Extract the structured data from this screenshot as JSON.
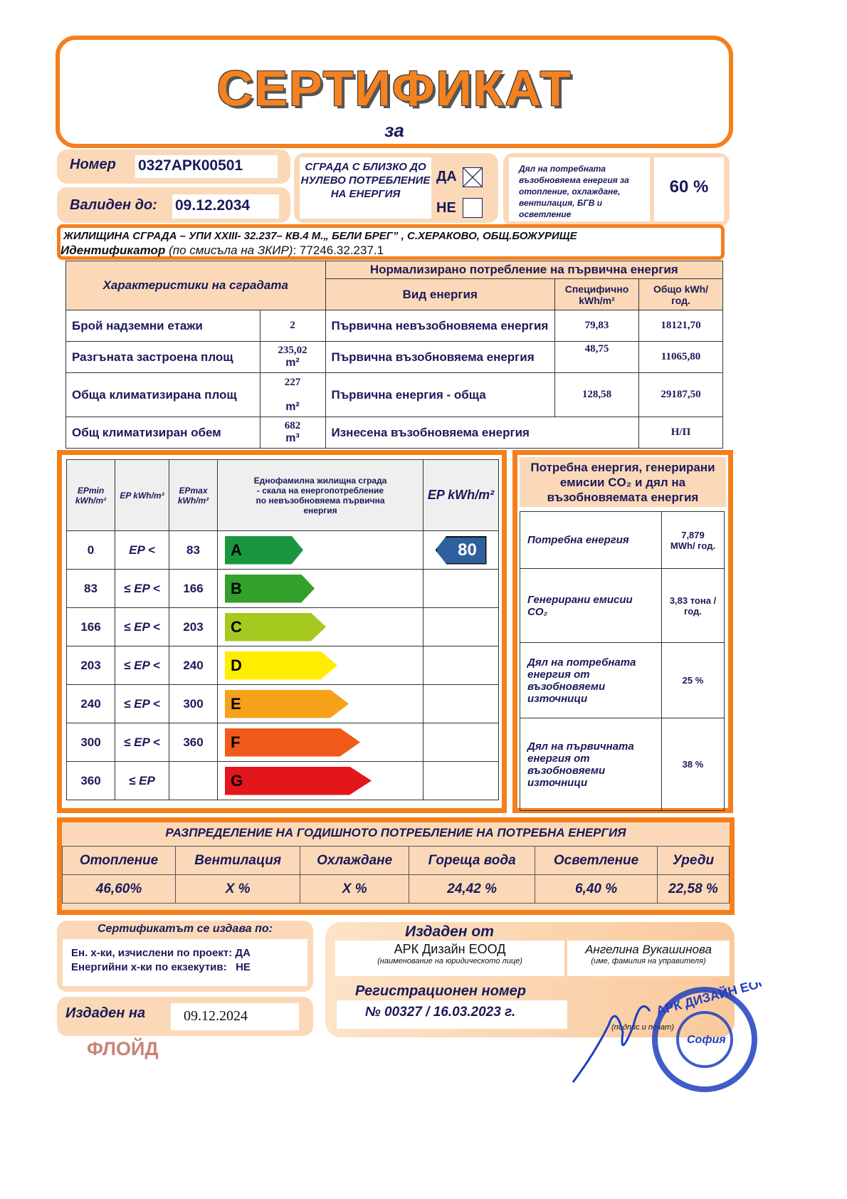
{
  "header": {
    "title": "СЕРТИФИКАТ",
    "subtitle": "за"
  },
  "number": {
    "label": "Номер",
    "value": "0327АРК00501"
  },
  "valid": {
    "label": "Валиден до:",
    "value": "09.12.2034"
  },
  "nzeb": {
    "text": "СГРАДА С БЛИЗКО ДО НУЛЕВО ПОТРЕБЛЕНИЕ НА ЕНЕРГИЯ",
    "yes": "ДА",
    "no": "НЕ",
    "yes_checked": true,
    "no_checked": false
  },
  "renewable_share": {
    "label": "Дял на потребната възобновяема енергия за отопление, охлаждане, вентилация, БГВ и осветление",
    "value": "60 %"
  },
  "address": {
    "line": "ЖИЛИЩИНА СГРАДА – УПИ XXIII- 32.237– КВ.4 М.„ БЕЛИ БРЕГ” , С.ХЕРАКОВО,  ОБЩ.БОЖУРИЩЕ",
    "id_label": "Идентификатор",
    "id_note": "(по смисъла на ЗКИР)",
    "id_value": ": 77246.32.237.1"
  },
  "characteristics": {
    "header": "Характеристики на сградата",
    "norm_header": "Нормализирано потребление на първична енергия",
    "col_type": "Вид енергия",
    "col_spec": "Специфично kWh/m²",
    "col_total": "Общо kWh/год.",
    "rows": [
      {
        "name": "Брой надземни етажи",
        "value": "2",
        "unit": "",
        "energy": "Първична невъзобновяема енергия",
        "spec": "79,83",
        "total": "18121,70"
      },
      {
        "name": "Разгъната застроена площ",
        "value": "235,02",
        "unit": "m²",
        "energy": "Първична възобновяема енергия",
        "spec": "48,75",
        "total": "11065,80"
      },
      {
        "name": "Обща климатизирана площ",
        "value": "227",
        "unit": "m²",
        "energy": "Първична енергия - обща",
        "spec": "128,58",
        "total": "29187,50"
      },
      {
        "name": "Общ климатизиран обем",
        "value": "682",
        "unit": "m³",
        "energy": "Изнесена възобновяема енергия",
        "spec": "",
        "total": "Н/П"
      }
    ]
  },
  "scale": {
    "headers": {
      "epmin": "EPmin kWh/m²",
      "ep": "EP kWh/m²",
      "epmax": "EPmax kWh/m²",
      "desc": "Еднофамилна жилищна сграда - скала на енергопотребление по невъзобновяема първична енергия",
      "current": "EP kWh/m²"
    },
    "classes": [
      {
        "min": "0",
        "op": "EP <",
        "max": "83",
        "letter": "A",
        "color": "#1a9641"
      },
      {
        "min": "83",
        "op": "≤ EP <",
        "max": "166",
        "letter": "B",
        "color": "#33a02c"
      },
      {
        "min": "166",
        "op": "≤ EP <",
        "max": "203",
        "letter": "C",
        "color": "#a6c91f"
      },
      {
        "min": "203",
        "op": "≤ EP <",
        "max": "240",
        "letter": "D",
        "color": "#ffee00"
      },
      {
        "min": "240",
        "op": "≤ EP <",
        "max": "300",
        "letter": "E",
        "color": "#f7a11a"
      },
      {
        "min": "300",
        "op": "≤ EP <",
        "max": "360",
        "letter": "F",
        "color": "#f05a1a"
      },
      {
        "min": "360",
        "op": "≤ EP",
        "max": "",
        "letter": "G",
        "color": "#e3161b"
      }
    ],
    "current_value": "80",
    "current_class": "A",
    "current_color": "#2f5f9e"
  },
  "emissions": {
    "header": "Потребна енергия, генерирани емисии CO₂ и дял на възобновяемата енергия",
    "rows": [
      {
        "label": "Потребна енергия",
        "value": "7,879 MWh/ год."
      },
      {
        "label": "Генерирани емисии CO₂",
        "value": "3,83 тона /год."
      },
      {
        "label": "Дял на потребната енергия от възобновяеми източници",
        "value": "25 %"
      },
      {
        "label": "Дял на първичната енергия от възобновяеми източници",
        "value": "38 %"
      }
    ]
  },
  "distribution": {
    "title": "РАЗПРЕДЕЛЕНИЕ  НА  ГОДИШНОТО  ПОТРЕБЛЕНИЕ  НА  ПОТРЕБНА  ЕНЕРГИЯ",
    "cols": [
      {
        "label": "Отопление",
        "value": "46,60%"
      },
      {
        "label": "Вентилация",
        "value": "X %"
      },
      {
        "label": "Охлаждане",
        "value": "X %"
      },
      {
        "label": "Гореща вода",
        "value": "24,42 %"
      },
      {
        "label": "Осветление",
        "value": "6,40 %"
      },
      {
        "label": "Уреди",
        "value": "22,58 %"
      }
    ]
  },
  "issued_by_basis": {
    "title": "Сертификатът се издава по:",
    "line1": "Ен. х-ки, изчислени по проект: ДА",
    "line2": "Енергийни х-ки по екзекутив:   НЕ"
  },
  "issued_on": {
    "label": "Издаден на",
    "value": "09.12.2024"
  },
  "watermark": "ФЛОЙД",
  "issuer": {
    "title": "Издаден от",
    "company": "АРК Дизайн ЕООД",
    "company_note": "(наименование на юридическото лице)",
    "manager": "Ангелина Вукашинова",
    "manager_note": "(име, фамилия на управителя)",
    "reg_label": "Регистрационен номер",
    "reg_value": "№ 00327 / 16.03.2023 г.",
    "sign_note": "(подпис и печат)"
  },
  "stamp": {
    "text": "АРК ДИЗАЙН ЕООД София"
  }
}
